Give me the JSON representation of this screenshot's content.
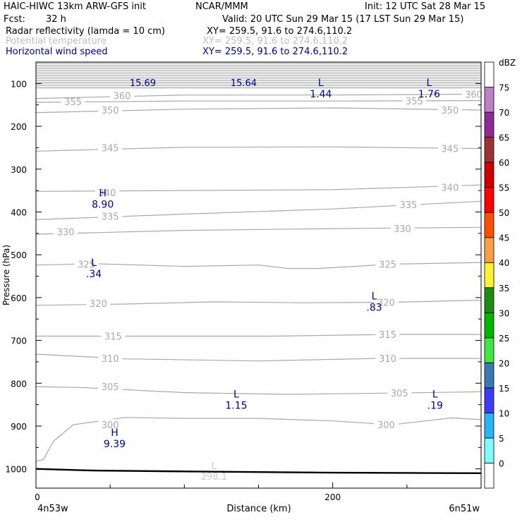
{
  "header": {
    "model": "HAIC-HIWC 13km ARW-GFS init",
    "org": "NCAR/MMM",
    "init": "Init: 12 UTC Sat 28 Mar 15",
    "fcst_label": "Fcst:",
    "fcst_value": "32 h",
    "valid": "Valid: 20 UTC Sun 29 Mar 15 (17 LST Sun 29 Mar 15)",
    "field1": "Radar reflectivity (lamda = 10 cm)",
    "field1_xy": "XY= 259.5, 91.6 to 274.6,110.2",
    "field2": "Potential temperature",
    "field2_xy": "XY= 259.5, 91.6 to 274.6,110.2",
    "field3": "Horizontal wind speed",
    "field3_xy": "XY= 259.5, 91.6 to 274.6,110.2"
  },
  "colors": {
    "theta": "#a8a8a8",
    "wind": "#00008b",
    "ground": "#000000"
  },
  "chart_data": {
    "type": "cross-section",
    "title": "Radar reflectivity (lamda = 10 cm) / Potential temperature / Horizontal wind speed",
    "ylabel": "Pressure (hPa)",
    "xlabel": "Distance (km)",
    "xlim": [
      0,
      300
    ],
    "ylim": [
      1045,
      50
    ],
    "x_ticks": [
      0,
      200
    ],
    "y_ticks": [
      100,
      200,
      300,
      400,
      500,
      600,
      700,
      800,
      900,
      1000
    ],
    "x_endpoint_labels": [
      "4n53w",
      "6n51w"
    ],
    "theta_contours": [
      {
        "label": "300",
        "x": [
          0,
          5,
          12,
          25,
          60,
          100,
          150,
          200,
          240,
          260,
          280,
          300
        ],
        "p": [
          982,
          978,
          935,
          897,
          880,
          882,
          882,
          888,
          897,
          889,
          881,
          885
        ],
        "labels_at": [
          [
            50,
            897
          ],
          [
            236,
            897
          ]
        ]
      },
      {
        "label": "305",
        "x": [
          0,
          30,
          100,
          170,
          240,
          300
        ],
        "p": [
          808,
          810,
          822,
          826,
          823,
          820
        ],
        "labels_at": [
          [
            50,
            808
          ],
          [
            245,
            823
          ]
        ]
      },
      {
        "label": "310",
        "x": [
          0,
          60,
          150,
          230,
          300
        ],
        "p": [
          732,
          743,
          748,
          742,
          742
        ],
        "labels_at": [
          [
            50,
            742
          ],
          [
            237,
            742
          ]
        ]
      },
      {
        "label": "315",
        "x": [
          0,
          80,
          160,
          240,
          300
        ],
        "p": [
          690,
          690,
          690,
          686,
          686
        ],
        "labels_at": [
          [
            52,
            690
          ],
          [
            237,
            686
          ]
        ]
      },
      {
        "label": "320",
        "x": [
          0,
          60,
          120,
          180,
          240,
          300
        ],
        "p": [
          618,
          615,
          610,
          612,
          611,
          606
        ],
        "labels_at": [
          [
            42,
            613
          ],
          [
            236,
            611
          ]
        ]
      },
      {
        "label": "325",
        "x": [
          0,
          40,
          100,
          150,
          170,
          190,
          240,
          300
        ],
        "p": [
          524,
          521,
          527,
          524,
          532,
          532,
          522,
          518
        ],
        "labels_at": [
          [
            34,
            522
          ],
          [
            237,
            522
          ]
        ]
      },
      {
        "label": "330",
        "x": [
          0,
          100,
          200,
          300
        ],
        "p": [
          452,
          443,
          439,
          436
        ],
        "labels_at": [
          [
            20,
            446
          ],
          [
            247,
            439
          ]
        ]
      },
      {
        "label": "335",
        "x": [
          0,
          100,
          200,
          300
        ],
        "p": [
          418,
          405,
          393,
          375
        ],
        "labels_at": [
          [
            50,
            410
          ],
          [
            251,
            383
          ]
        ]
      },
      {
        "label": "340",
        "x": [
          0,
          100,
          200,
          300
        ],
        "p": [
          352,
          350,
          348,
          337
        ],
        "labels_at": [
          [
            48,
            355
          ],
          [
            279,
            342
          ]
        ]
      },
      {
        "label": "345",
        "x": [
          0,
          100,
          200,
          300
        ],
        "p": [
          258,
          249,
          248,
          252
        ],
        "labels_at": [
          [
            50,
            250
          ],
          [
            279,
            252
          ]
        ]
      },
      {
        "label": "350",
        "x": [
          0,
          100,
          200,
          300
        ],
        "p": [
          168,
          160,
          157,
          162
        ],
        "labels_at": [
          [
            50,
            162
          ],
          [
            279,
            162
          ]
        ]
      },
      {
        "label": "355",
        "x": [
          0,
          100,
          200,
          300
        ],
        "p": [
          144,
          141,
          141,
          140
        ],
        "labels_at": [
          [
            25,
            142
          ],
          [
            255,
            141
          ]
        ]
      },
      {
        "label": "360",
        "x": [
          0,
          100,
          200,
          300
        ],
        "p": [
          135,
          127,
          127,
          125
        ],
        "labels_at": [
          [
            58,
            128
          ],
          [
            295,
            125
          ]
        ]
      }
    ],
    "stratosphere_band": {
      "p_top": 50,
      "p_bottom": 113,
      "line_count": 11
    },
    "wind_labels": [
      {
        "value": "15.69",
        "x": 72,
        "p": 88
      },
      {
        "value": "15.64",
        "x": 140,
        "p": 88
      }
    ],
    "extrema": [
      {
        "type": "L",
        "value": "1.44",
        "x": 192,
        "p": 113
      },
      {
        "type": "L",
        "value": "1.76",
        "x": 265,
        "p": 113
      },
      {
        "type": "H",
        "value": "8.90",
        "x": 45,
        "p": 370
      },
      {
        "type": "L",
        "value": ".34",
        "x": 39,
        "p": 533
      },
      {
        "type": "L",
        "value": ".83",
        "x": 228,
        "p": 611
      },
      {
        "type": "L",
        "value": "1.15",
        "x": 135,
        "p": 840
      },
      {
        "type": "L",
        "value": ".19",
        "x": 269,
        "p": 840
      },
      {
        "type": "H",
        "value": "9.39",
        "x": 53,
        "p": 930
      }
    ],
    "ground_pressure_label": {
      "type": "L",
      "value": "298.1",
      "x": 120,
      "p": 1007
    },
    "ground": {
      "x": [
        0,
        40,
        100,
        200,
        300
      ],
      "p": [
        1000,
        1004,
        1006,
        1009,
        1010
      ]
    },
    "colorbar": {
      "unit": "dBZ",
      "levels": [
        0,
        5,
        10,
        15,
        20,
        25,
        30,
        35,
        40,
        45,
        50,
        55,
        60,
        65,
        70,
        75
      ],
      "colors": [
        "#ffffff",
        "#7ffcfc",
        "#2ab4f8",
        "#3c3cfc",
        "#3c78b4",
        "#42e642",
        "#00b400",
        "#1e8c14",
        "#fcf032",
        "#f8a046",
        "#fc5000",
        "#fc0000",
        "#d00000",
        "#9c3232",
        "#8c2c94",
        "#bf80c8",
        "#ffffff"
      ]
    }
  }
}
